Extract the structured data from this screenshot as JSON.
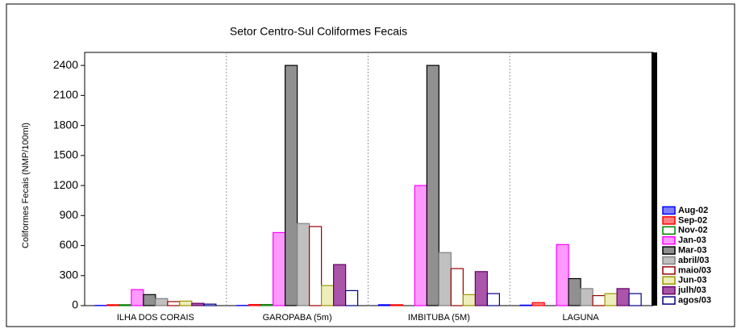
{
  "chart_data": {
    "type": "bar",
    "title": "Setor Centro-Sul Coliformes Fecais",
    "y_label": "Coliformes Fecais (NMP/100ml)",
    "categories": [
      "ILHA DOS CORAIS",
      "GAROPABA (5m)",
      "IMBITUBA (5M)",
      "LAGUNA"
    ],
    "ylim": [
      0,
      2530
    ],
    "yticks": [
      0,
      300,
      600,
      900,
      1200,
      1500,
      1800,
      2100,
      2400
    ],
    "series": [
      {
        "name": "Aug-02",
        "color": "#0000ff",
        "fill": "#8080ff",
        "values": [
          2,
          2,
          9,
          5
        ]
      },
      {
        "name": "Sep-02",
        "color": "#ff0000",
        "fill": "#ff8080",
        "values": [
          9,
          11,
          9,
          30
        ]
      },
      {
        "name": "Nov-02",
        "color": "#008000",
        "fill": "#ffffff",
        "values": [
          9,
          11,
          0,
          0
        ]
      },
      {
        "name": "Jan-03",
        "color": "#ff00ff",
        "fill": "#ff99ff",
        "values": [
          160,
          730,
          1200,
          610
        ]
      },
      {
        "name": "Mar-03",
        "color": "#000000",
        "fill": "#909090",
        "values": [
          110,
          2400,
          2400,
          270
        ]
      },
      {
        "name": "abril/03",
        "color": "#808080",
        "fill": "#c0c0c0",
        "values": [
          70,
          820,
          530,
          170
        ]
      },
      {
        "name": "maio/03",
        "color": "#990000",
        "fill": "#ffffff",
        "values": [
          40,
          790,
          370,
          100
        ]
      },
      {
        "name": "Jun-03",
        "color": "#999900",
        "fill": "#eeeebb",
        "values": [
          45,
          200,
          110,
          120
        ]
      },
      {
        "name": "julh/03",
        "color": "#660066",
        "fill": "#aa55aa",
        "values": [
          23,
          410,
          340,
          170
        ]
      },
      {
        "name": "agos/03",
        "color": "#000080",
        "fill": "#ffffff",
        "values": [
          15,
          150,
          120,
          120
        ]
      }
    ]
  }
}
